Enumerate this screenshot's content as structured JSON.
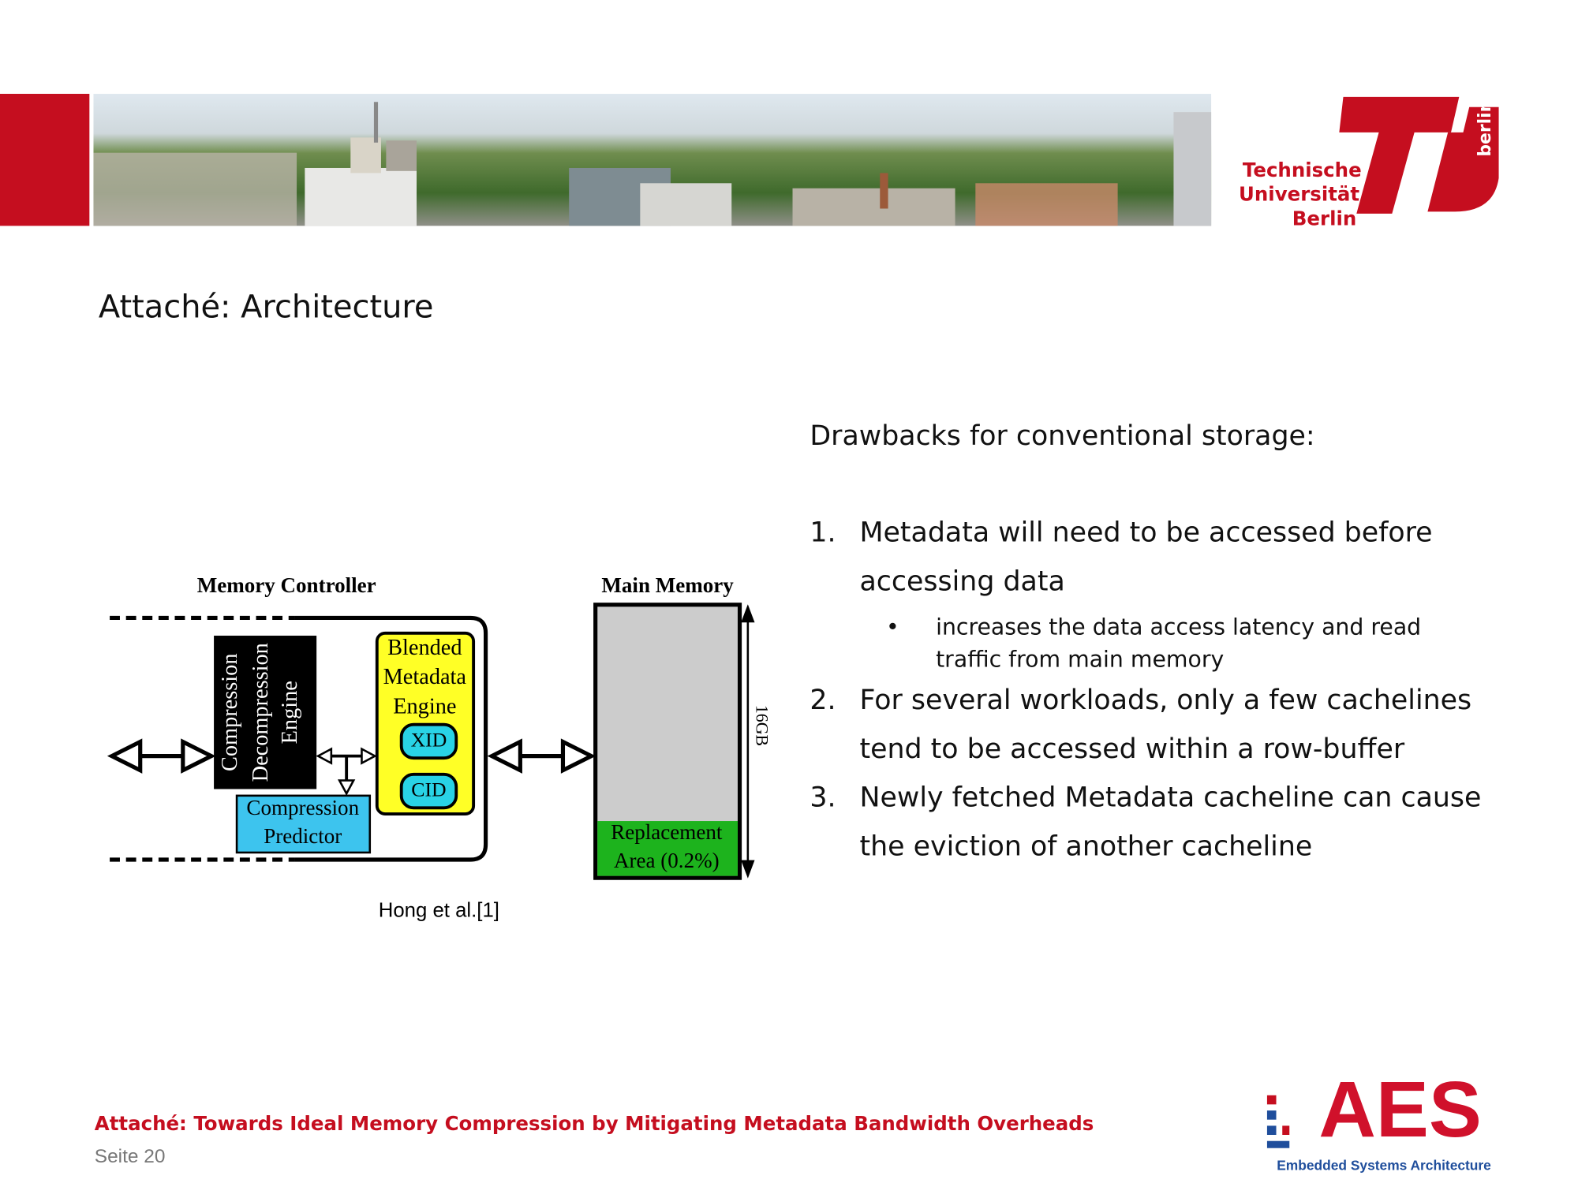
{
  "header": {
    "logo": {
      "lines": [
        "Technische",
        "Universität",
        "Berlin"
      ],
      "side": "berlin"
    }
  },
  "title": "Attaché: Architecture",
  "figure": {
    "memory_controller": "Memory Controller",
    "main_memory": "Main Memory",
    "engine": [
      "Compression",
      "Decompression",
      "Engine"
    ],
    "blended": [
      "Blended",
      "Metadata",
      "Engine"
    ],
    "xid": "XID",
    "cid": "CID",
    "predictor": [
      "Compression",
      "Predictor"
    ],
    "replacement": [
      "Replacement",
      "Area (0.2%)"
    ],
    "size": "16GB",
    "caption": "Hong et al.[1]"
  },
  "content": {
    "heading": "Drawbacks for conventional storage:",
    "items": [
      {
        "number": "1.",
        "lines": [
          "Metadata will need to be accessed before",
          "accessing data"
        ],
        "bullet": "•",
        "sub": [
          "increases the data access latency and read",
          "traffic from main memory"
        ]
      },
      {
        "number": "2.",
        "lines": [
          "For several workloads, only a few cachelines",
          "tend to be accessed within a row-buffer"
        ]
      },
      {
        "number": "3.",
        "lines": [
          "Newly fetched Metadata cacheline can cause",
          "the eviction of another cacheline"
        ]
      }
    ]
  },
  "footer": {
    "paper": "Attaché: Towards Ideal Memory Compression by Mitigating Metadata Bandwidth Overheads",
    "page": "Seite 20",
    "aes": "AES",
    "aes_sub": "Embedded Systems Architecture"
  }
}
